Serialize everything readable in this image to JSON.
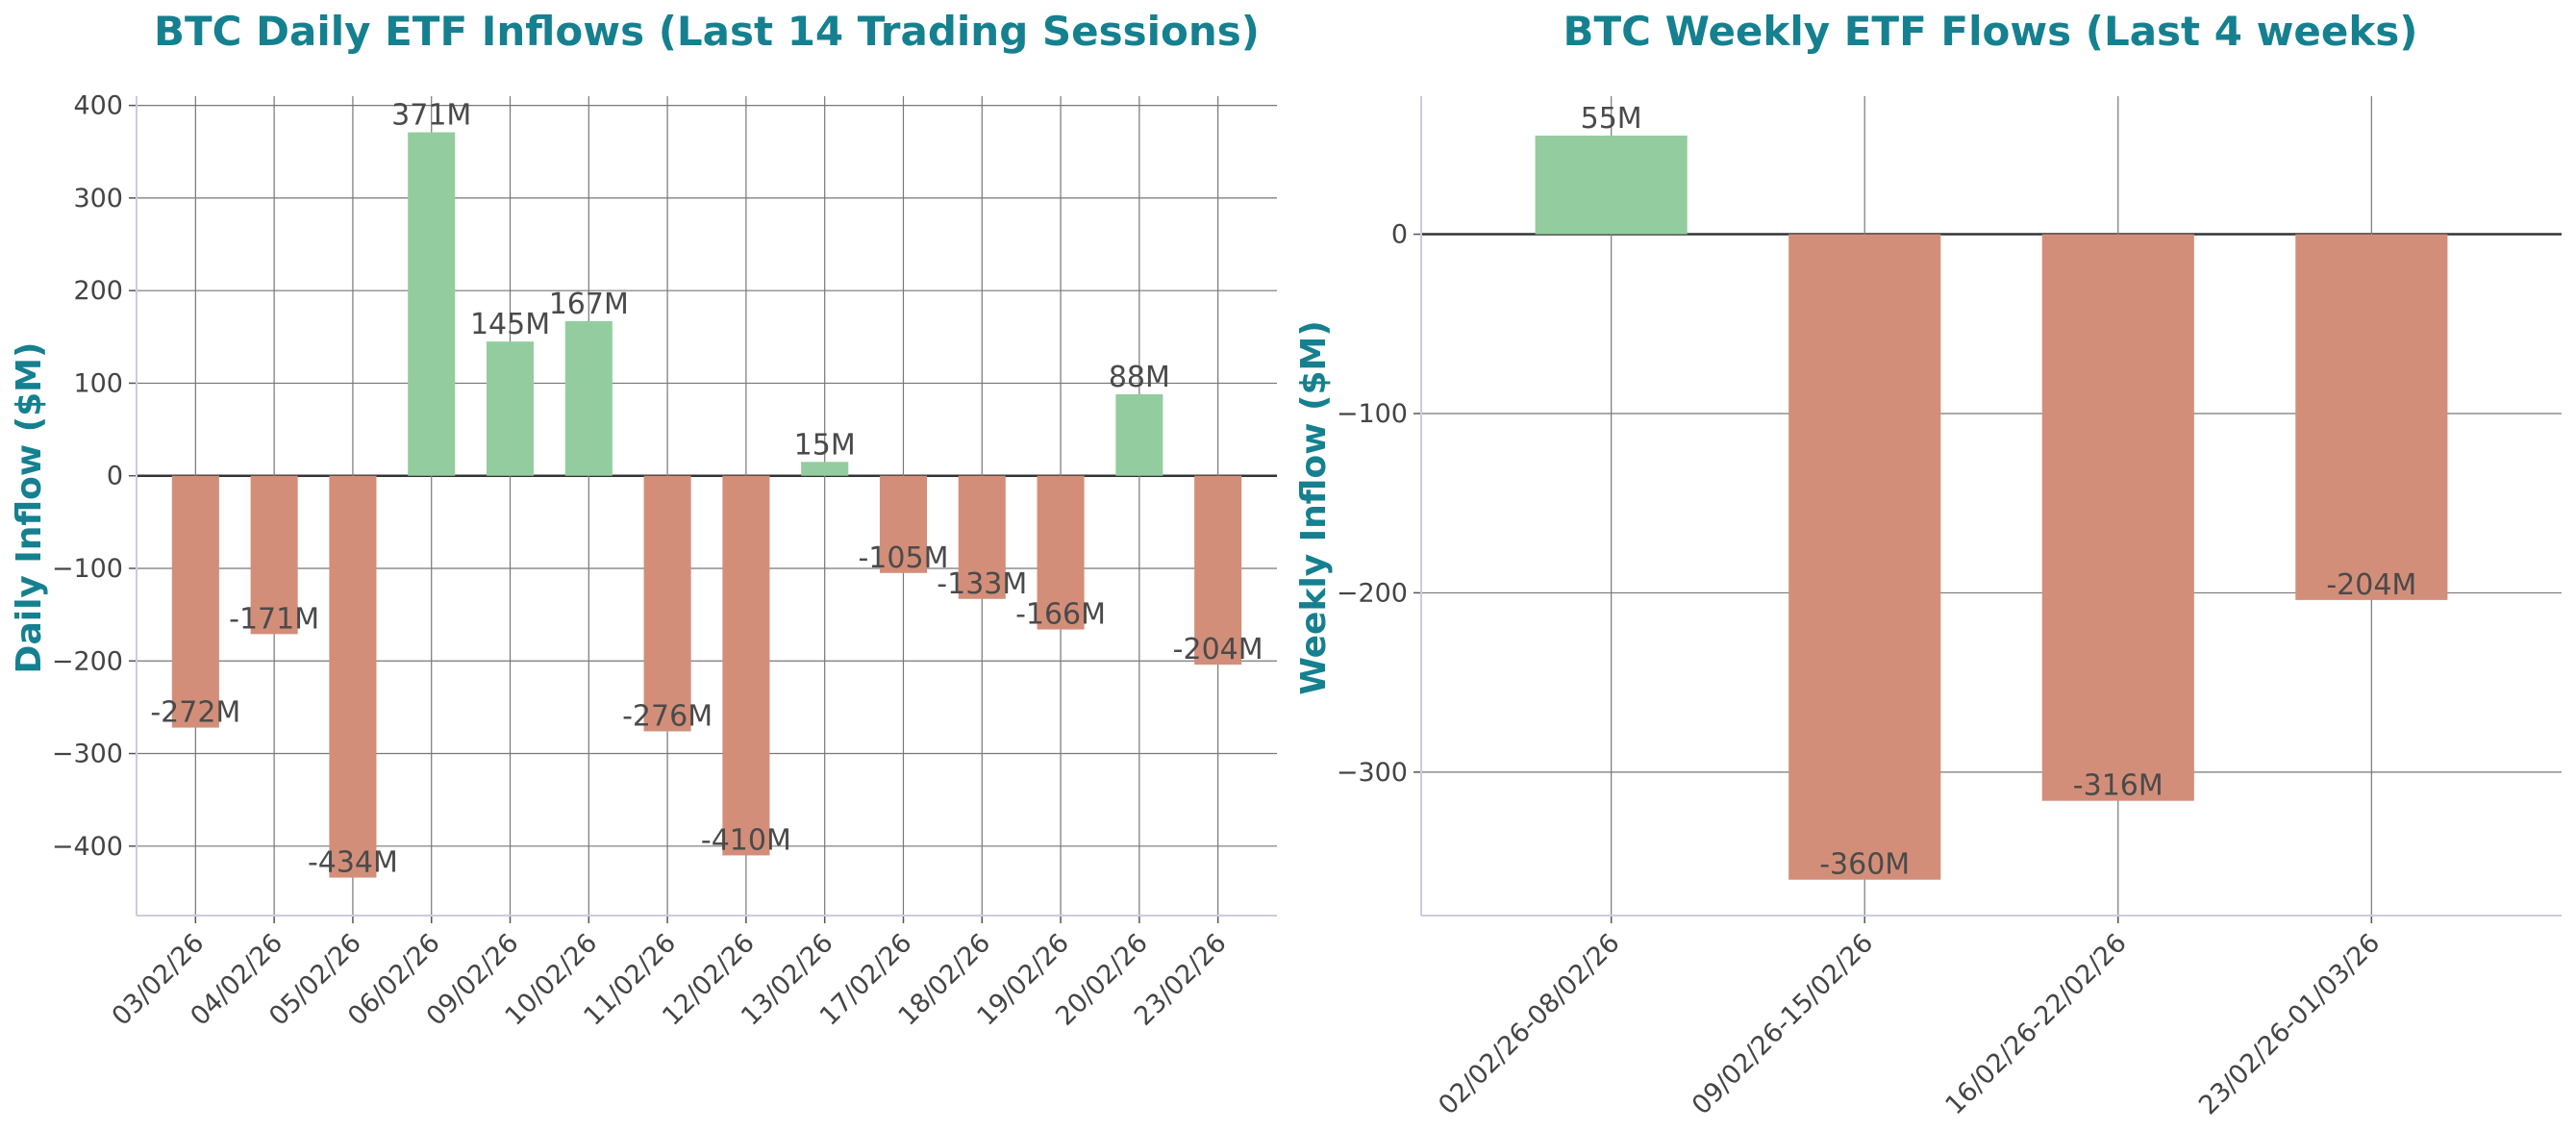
{
  "colors": {
    "title": "#15808f",
    "positive": "#93cd9f",
    "negative": "#d38e79",
    "grid": "#777777",
    "zero_line": "#333333",
    "frame": "#ccccdd"
  },
  "chart_data": [
    {
      "type": "bar",
      "title": "BTC Daily ETF Inflows (Last 14 Trading Sessions)",
      "xlabel": "",
      "ylabel": "Daily Inflow ($M)",
      "ylim": [
        -475,
        410
      ],
      "yticks": [
        400,
        300,
        200,
        100,
        0,
        -100,
        -200,
        -300,
        -400
      ],
      "ytick_labels": [
        "400",
        "300",
        "200",
        "100",
        "0",
        "−100",
        "−200",
        "−300",
        "−400"
      ],
      "grid": true,
      "categories": [
        "03/02/26",
        "04/02/26",
        "05/02/26",
        "06/02/26",
        "09/02/26",
        "10/02/26",
        "11/02/26",
        "12/02/26",
        "13/02/26",
        "17/02/26",
        "18/02/26",
        "19/02/26",
        "20/02/26",
        "23/02/26"
      ],
      "values": [
        -272,
        -171,
        -434,
        371,
        145,
        167,
        -276,
        -410,
        15,
        -105,
        -133,
        -166,
        88,
        -204
      ],
      "data_labels": [
        "-272M",
        "-171M",
        "-434M",
        "371M",
        "145M",
        "167M",
        "-276M",
        "-410M",
        "15M",
        "-105M",
        "-133M",
        "-166M",
        "88M",
        "-204M"
      ]
    },
    {
      "type": "bar",
      "title": "BTC Weekly ETF Flows (Last 4 weeks)",
      "xlabel": "",
      "ylabel": "Weekly Inflow ($M)",
      "ylim": [
        -380,
        77
      ],
      "yticks": [
        0,
        -100,
        -200,
        -300
      ],
      "ytick_labels": [
        "0",
        "−100",
        "−200",
        "−300"
      ],
      "grid": true,
      "categories": [
        "02/02/26-08/02/26",
        "09/02/26-15/02/26",
        "16/02/26-22/02/26",
        "23/02/26-01/03/26"
      ],
      "values": [
        55,
        -360,
        -316,
        -204
      ],
      "data_labels": [
        "55M",
        "-360M",
        "-316M",
        "-204M"
      ]
    }
  ]
}
